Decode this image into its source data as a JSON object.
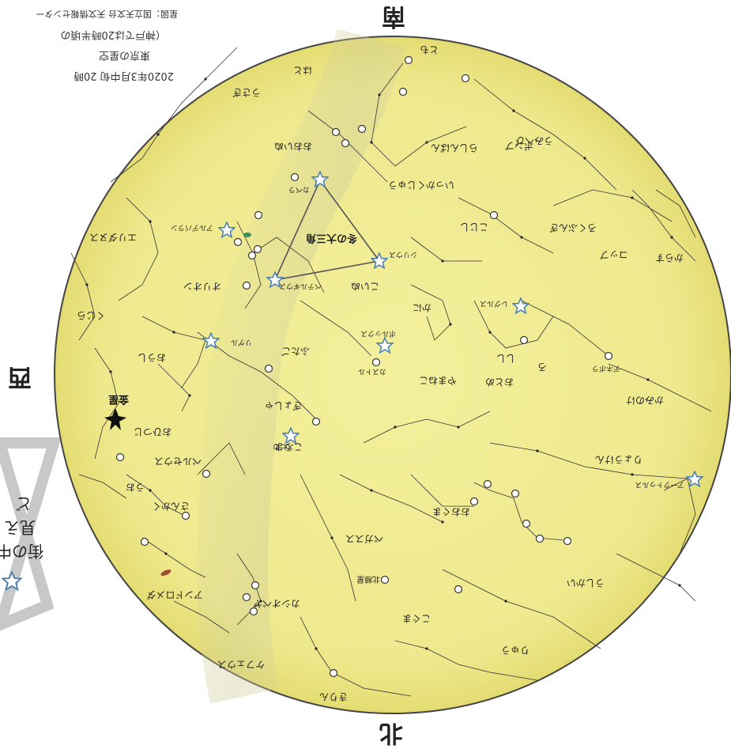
{
  "header": {
    "line1": "2020年3月中旬 20時",
    "line2": "東京の星空",
    "line3": "（神戸では20時半頃の",
    "line4": "星図：国立天文台 天文情報センター"
  },
  "directions": {
    "south": "南",
    "north": "北",
    "west": "西"
  },
  "legend": {
    "line1": "街の中",
    "line2": "見え",
    "line3": "ど"
  },
  "asterism": {
    "winter_triangle": "冬の大三角"
  },
  "planets": {
    "venus": "金星"
  },
  "markers": {
    "polaris": "北極星"
  },
  "constellations": [
    "とも",
    "はと",
    "うさぎ",
    "エリダヌス",
    "オリオン",
    "いっかくじゅう",
    "おおいぬ",
    "こいぬ",
    "うみへび",
    "ろくぶんぎ",
    "しし",
    "こじし",
    "かに",
    "ふたご",
    "やまねこ",
    "ぎょしゃ",
    "おうし",
    "くじら",
    "おひつじ",
    "さんかく",
    "アンドロメダ",
    "ペルセウス",
    "カシオペヤ",
    "ケフェウス",
    "こぐま",
    "おおぐま",
    "りゅう",
    "りょうけん",
    "かみのけ",
    "おとめ",
    "うしかい",
    "ポンプ",
    "らしんばん",
    "からす",
    "コップ",
    "ペガスス",
    "うお",
    "ろ",
    "こうま",
    "きりん",
    "はくちょう"
  ],
  "stars": [
    "シリウス",
    "プロキオン",
    "ベテルギウス",
    "リゲル",
    "カストル",
    "ポルックス",
    "アルデバラン",
    "カペラ",
    "レグルス",
    "デネボラ",
    "アークトゥルス",
    "スピカ",
    "アルファルド",
    "ミラ",
    "アルゴル"
  ]
}
